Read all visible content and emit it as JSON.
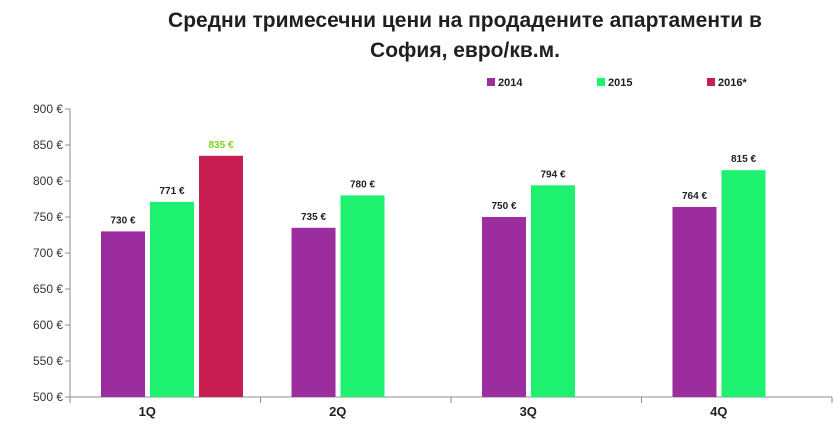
{
  "chart_data": {
    "type": "bar",
    "title_lines": [
      "Средни тримесечни цени на продадените апартаменти в",
      "София, евро/кв.м."
    ],
    "categories": [
      "1Q",
      "2Q",
      "3Q",
      "4Q"
    ],
    "ylim": [
      500,
      900
    ],
    "yticks": [
      500,
      550,
      600,
      650,
      700,
      750,
      800,
      850,
      900
    ],
    "ytick_labels": [
      "500 €",
      "550 €",
      "600 €",
      "650 €",
      "700 €",
      "750 €",
      "800 €",
      "850 €",
      "900 €"
    ],
    "legend_position": "top-right",
    "grid": false,
    "series": [
      {
        "name": "2014",
        "color": "#9b2d9f",
        "values": [
          730,
          735,
          750,
          764
        ],
        "labels": [
          "730 €",
          "735 €",
          "750 €",
          "764 €"
        ]
      },
      {
        "name": "2015",
        "color": "#1ef070",
        "values": [
          771,
          780,
          794,
          815
        ],
        "labels": [
          "771 €",
          "780 €",
          "794 €",
          "815 €"
        ]
      },
      {
        "name": "2016*",
        "color": "#c81f52",
        "values": [
          835,
          null,
          null,
          null
        ],
        "labels": [
          "835 €",
          null,
          null,
          null
        ],
        "label_color": "#7ed321"
      }
    ]
  }
}
